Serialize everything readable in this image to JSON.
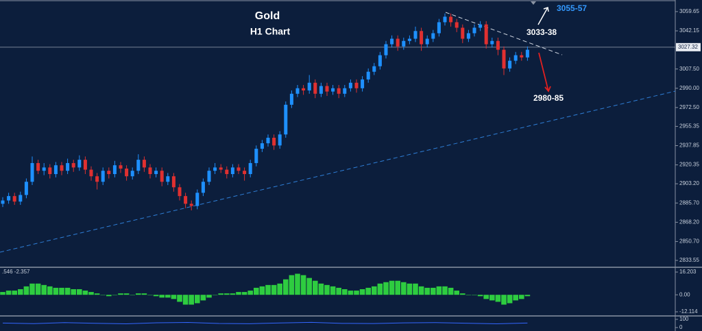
{
  "chart_data": [
    {
      "type": "candlestick",
      "title": "Gold",
      "subtitle": "H1 Chart",
      "up_color": "#1e90ff",
      "down_color": "#e03030",
      "ylim": [
        2827.3,
        3070.2
      ],
      "yticks": [
        3059.65,
        3042.15,
        {
          "value": 3007.5,
          "label": "3007.50"
        },
        {
          "value": 2990,
          "label": "2990.00"
        },
        {
          "value": 2972.5,
          "label": "2972.50"
        },
        2955.35,
        2937.85,
        2920.35,
        {
          "value": 2903.2,
          "label": "2903.20"
        },
        {
          "value": 2885.7,
          "label": "2885.70"
        },
        {
          "value": 2868.2,
          "label": "2868.20"
        },
        {
          "value": 2850.7,
          "label": "2850.70"
        },
        2833.55
      ],
      "current_price": 3027.32,
      "annotations": [
        "3055-57",
        "3033-38",
        "2980-85"
      ],
      "candles": [
        [
          2885,
          2891,
          2882,
          2888
        ],
        [
          2888,
          2895,
          2885,
          2892
        ],
        [
          2892,
          2895,
          2884,
          2887
        ],
        [
          2887,
          2896,
          2884,
          2893
        ],
        [
          2893,
          2908,
          2890,
          2905
        ],
        [
          2905,
          2928,
          2902,
          2922
        ],
        [
          2922,
          2925,
          2912,
          2915
        ],
        [
          2915,
          2922,
          2911,
          2918
        ],
        [
          2918,
          2921,
          2908,
          2912
        ],
        [
          2912,
          2923,
          2909,
          2920
        ],
        [
          2920,
          2923,
          2911,
          2915
        ],
        [
          2915,
          2926,
          2912,
          2922
        ],
        [
          2922,
          2925,
          2914,
          2918
        ],
        [
          2918,
          2929,
          2915,
          2925
        ],
        [
          2925,
          2928,
          2912,
          2916
        ],
        [
          2916,
          2919,
          2906,
          2910
        ],
        [
          2910,
          2913,
          2898,
          2905
        ],
        [
          2905,
          2918,
          2902,
          2915
        ],
        [
          2915,
          2918,
          2908,
          2912
        ],
        [
          2912,
          2924,
          2909,
          2920
        ],
        [
          2920,
          2923,
          2913,
          2917
        ],
        [
          2917,
          2920,
          2906,
          2910
        ],
        [
          2910,
          2918,
          2907,
          2915
        ],
        [
          2915,
          2930,
          2912,
          2925
        ],
        [
          2925,
          2928,
          2914,
          2918
        ],
        [
          2918,
          2921,
          2908,
          2912
        ],
        [
          2912,
          2918,
          2909,
          2915
        ],
        [
          2915,
          2918,
          2901,
          2905
        ],
        [
          2905,
          2913,
          2902,
          2910
        ],
        [
          2910,
          2913,
          2896,
          2900
        ],
        [
          2900,
          2903,
          2888,
          2892
        ],
        [
          2892,
          2895,
          2881,
          2885
        ],
        [
          2885,
          2888,
          2879,
          2883
        ],
        [
          2883,
          2898,
          2880,
          2895
        ],
        [
          2895,
          2908,
          2892,
          2905
        ],
        [
          2905,
          2918,
          2902,
          2915
        ],
        [
          2915,
          2922,
          2912,
          2918
        ],
        [
          2918,
          2921,
          2913,
          2916
        ],
        [
          2916,
          2919,
          2908,
          2912
        ],
        [
          2912,
          2921,
          2909,
          2918
        ],
        [
          2918,
          2921,
          2912,
          2915
        ],
        [
          2915,
          2918,
          2906,
          2912
        ],
        [
          2912,
          2925,
          2909,
          2922
        ],
        [
          2922,
          2938,
          2919,
          2935
        ],
        [
          2935,
          2943,
          2932,
          2940
        ],
        [
          2940,
          2948,
          2937,
          2945
        ],
        [
          2945,
          2948,
          2934,
          2938
        ],
        [
          2938,
          2951,
          2935,
          2948
        ],
        [
          2948,
          2978,
          2945,
          2975
        ],
        [
          2975,
          2988,
          2972,
          2985
        ],
        [
          2985,
          2993,
          2982,
          2990
        ],
        [
          2990,
          2993,
          2984,
          2988
        ],
        [
          2988,
          3002,
          2985,
          2995
        ],
        [
          2995,
          2998,
          2981,
          2985
        ],
        [
          2985,
          2995,
          2982,
          2992
        ],
        [
          2992,
          2995,
          2983,
          2987
        ],
        [
          2987,
          2993,
          2984,
          2990
        ],
        [
          2990,
          2993,
          2981,
          2985
        ],
        [
          2985,
          2993,
          2982,
          2990
        ],
        [
          2990,
          2998,
          2987,
          2995
        ],
        [
          2995,
          2998,
          2986,
          2990
        ],
        [
          2990,
          3001,
          2987,
          2998
        ],
        [
          2998,
          3008,
          2995,
          3005
        ],
        [
          3005,
          3013,
          3002,
          3010
        ],
        [
          3010,
          3023,
          3007,
          3020
        ],
        [
          3020,
          3033,
          3017,
          3030
        ],
        [
          3030,
          3038,
          3027,
          3035
        ],
        [
          3035,
          3038,
          3024,
          3028
        ],
        [
          3028,
          3036,
          3025,
          3033
        ],
        [
          3033,
          3038,
          3030,
          3035
        ],
        [
          3035,
          3046,
          3032,
          3042
        ],
        [
          3042,
          3045,
          3024,
          3030
        ],
        [
          3030,
          3038,
          3027,
          3035
        ],
        [
          3035,
          3043,
          3032,
          3040
        ],
        [
          3040,
          3053,
          3037,
          3050
        ],
        [
          3050,
          3058,
          3047,
          3055
        ],
        [
          3055,
          3058,
          3046,
          3050
        ],
        [
          3050,
          3053,
          3041,
          3045
        ],
        [
          3045,
          3048,
          3031,
          3035
        ],
        [
          3035,
          3043,
          3032,
          3040
        ],
        [
          3040,
          3048,
          3037,
          3045
        ],
        [
          3045,
          3051,
          3042,
          3048
        ],
        [
          3048,
          3051,
          3026,
          3030
        ],
        [
          3030,
          3036,
          3027,
          3033
        ],
        [
          3033,
          3036,
          3020,
          3025
        ],
        [
          3025,
          3028,
          3002,
          3008
        ],
        [
          3008,
          3018,
          3005,
          3015
        ],
        [
          3015,
          3023,
          3012,
          3020
        ],
        [
          3020,
          3023,
          3015,
          3018
        ],
        [
          3018,
          3028,
          3015,
          3025
        ]
      ]
    },
    {
      "type": "histogram_bars",
      "title": ".546 -2.357",
      "color": "#2ecc40",
      "ylim": [
        -14.56,
        19.13
      ],
      "yticks": [
        16.203,
        {
          "value": 0,
          "label": "0.00"
        },
        -12.114
      ],
      "values": [
        2,
        3,
        3,
        4,
        6,
        8,
        8,
        7,
        6,
        5,
        5,
        5,
        4,
        4,
        3,
        2,
        1,
        0,
        -1,
        0,
        1,
        1,
        0,
        1,
        1,
        0,
        -1,
        -2,
        -2,
        -3,
        -5,
        -7,
        -7,
        -6,
        -4,
        -2,
        0,
        1,
        1,
        1,
        2,
        2,
        3,
        5,
        6,
        7,
        7,
        8,
        11,
        14,
        15,
        14,
        12,
        10,
        8,
        7,
        6,
        5,
        4,
        3,
        3,
        4,
        5,
        6,
        8,
        9,
        10,
        10,
        9,
        8,
        8,
        6,
        5,
        5,
        6,
        6,
        5,
        3,
        1,
        0,
        0,
        -1,
        -3,
        -4,
        -5,
        -7,
        -6,
        -4,
        -3,
        -1
      ]
    },
    {
      "type": "line",
      "color": "#3366ff",
      "ylim": [
        -42,
        133
      ],
      "yticks": [
        100,
        0
      ],
      "values": [
        55,
        48,
        60,
        52,
        45,
        58,
        62,
        50,
        47,
        56,
        63,
        51,
        49,
        57,
        60,
        53,
        46,
        55
      ]
    }
  ]
}
